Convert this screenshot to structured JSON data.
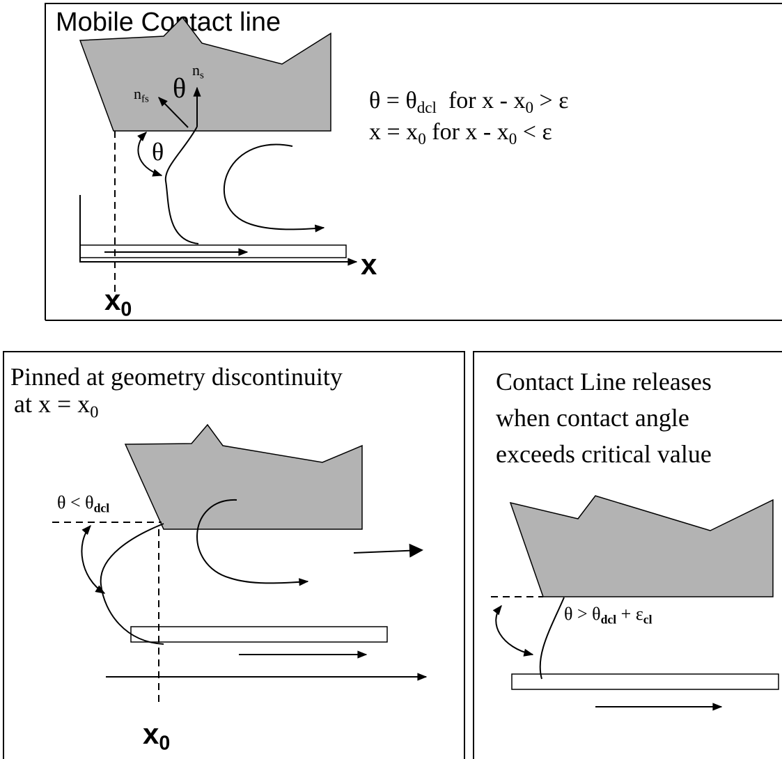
{
  "panel_1": {
    "title": "Mobile Contact line",
    "normal_fs": [
      {
        "text": "n"
      },
      {
        "sub": "fs"
      }
    ],
    "normal_s": [
      {
        "text": "n"
      },
      {
        "sub": "s"
      }
    ],
    "theta_normals": [
      {
        "text": "θ"
      }
    ],
    "theta_angle": [
      {
        "text": "θ"
      }
    ],
    "equation_1": [
      {
        "text": "θ = θ"
      },
      {
        "sub": "dcl"
      },
      {
        "text": "  for x - x"
      },
      {
        "sub": "0"
      },
      {
        "text": " > ε"
      }
    ],
    "equation_2": [
      {
        "text": "x = x"
      },
      {
        "sub": "0"
      },
      {
        "text": " for x - x"
      },
      {
        "sub": "0"
      },
      {
        "text": " < ε"
      }
    ],
    "axis_label": [
      {
        "text": "x"
      }
    ],
    "x0_label": [
      {
        "text": "x"
      },
      {
        "sub": "0"
      }
    ]
  },
  "panel_2": {
    "title_line_1": [
      {
        "text": "Pinned at geometry discontinuity"
      }
    ],
    "title_line_2": [
      {
        "text": "at x = x"
      },
      {
        "sub": "0"
      }
    ],
    "angle_label": [
      {
        "text": "θ < θ"
      },
      {
        "sub": "dcl"
      }
    ],
    "x0_label": [
      {
        "text": "x"
      },
      {
        "sub": "0"
      }
    ]
  },
  "panel_3": {
    "title_line_1": [
      {
        "text": "Contact Line releases"
      }
    ],
    "title_line_2": [
      {
        "text": "when contact angle"
      }
    ],
    "title_line_3": [
      {
        "text": "exceeds critical value"
      }
    ],
    "angle_label": [
      {
        "text": "θ > θ"
      },
      {
        "sub": "dcl"
      },
      {
        "text": " + ε"
      },
      {
        "sub": "cl"
      }
    ]
  }
}
